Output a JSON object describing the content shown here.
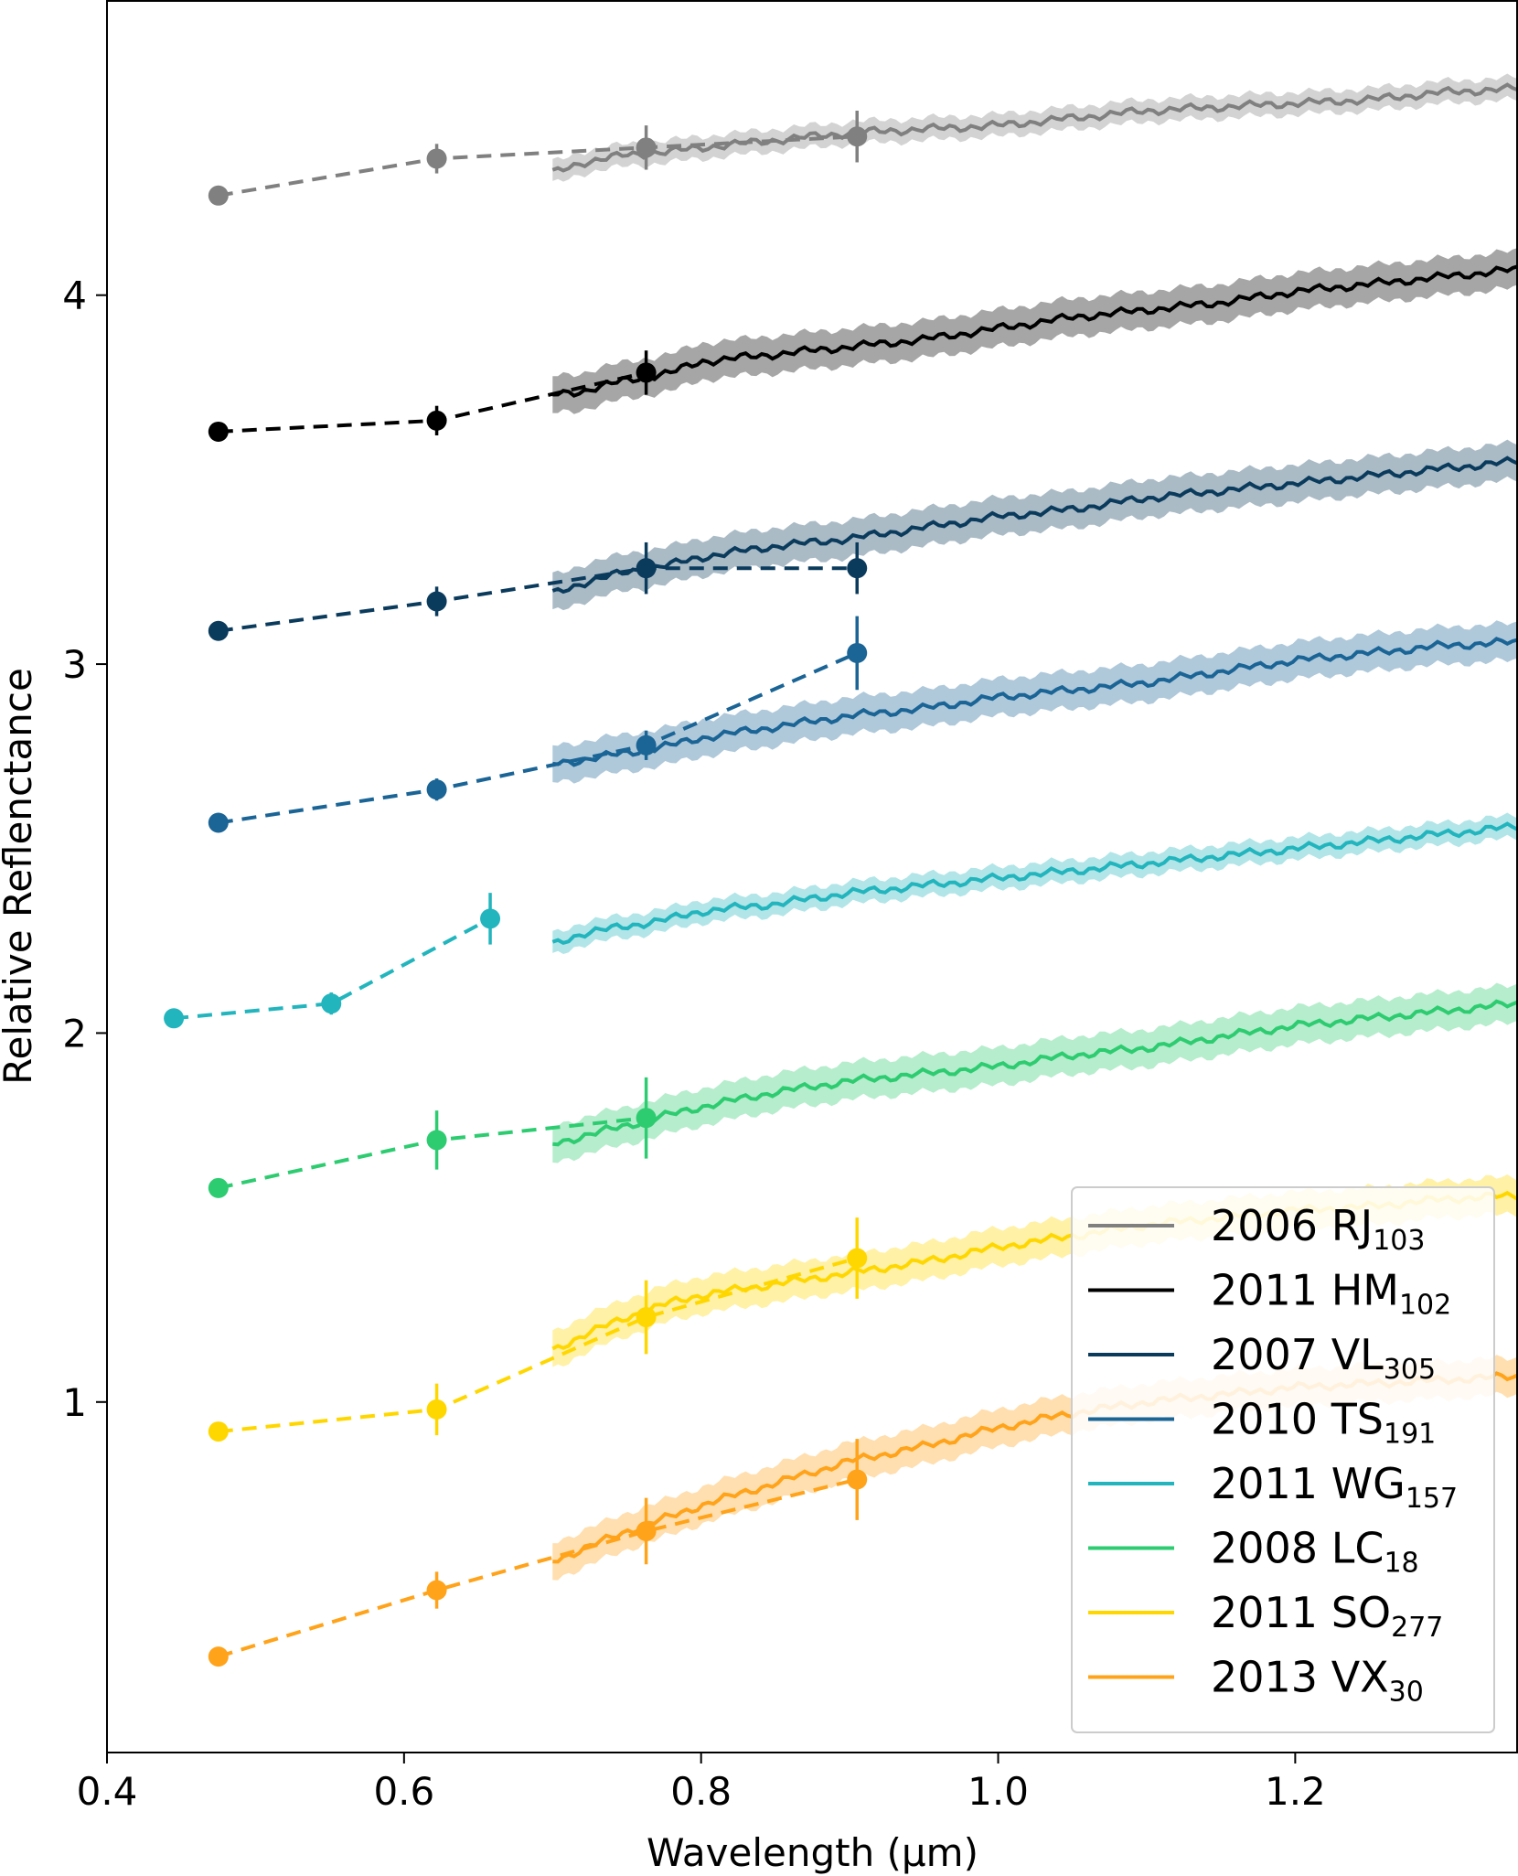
{
  "chart_data": {
    "type": "line",
    "xlabel": "Wavelength (μm)",
    "ylabel": "Relative Reflenctance",
    "xlim": [
      0.4,
      1.35
    ],
    "ylim": [
      0.05,
      4.8
    ],
    "xticks": [
      0.4,
      0.6,
      0.8,
      1.0,
      1.2
    ],
    "xtick_labels": [
      "0.4",
      "0.6",
      "0.8",
      "1.0",
      "1.2"
    ],
    "yticks": [
      1,
      2,
      3,
      4
    ],
    "ytick_labels": [
      "1",
      "2",
      "3",
      "4"
    ],
    "grid": false,
    "legend_position": "lower-right",
    "series": [
      {
        "name_main": "2006 RJ",
        "name_sub": "103",
        "color": "#808080",
        "photometry": [
          {
            "x": 0.475,
            "y": 4.27,
            "err": 0.0
          },
          {
            "x": 0.622,
            "y": 4.37,
            "err": 0.04
          },
          {
            "x": 0.763,
            "y": 4.4,
            "err": 0.06
          },
          {
            "x": 0.905,
            "y": 4.43,
            "err": 0.07
          }
        ],
        "spectrum": {
          "x": [
            0.7,
            0.72,
            0.75,
            0.78,
            0.8,
            0.85,
            0.9,
            0.95,
            1.0,
            1.05,
            1.1,
            1.15,
            1.2,
            1.25,
            1.3,
            1.35
          ],
          "y": [
            4.33,
            4.36,
            4.38,
            4.39,
            4.4,
            4.42,
            4.44,
            4.45,
            4.46,
            4.48,
            4.5,
            4.51,
            4.52,
            4.53,
            4.55,
            4.56
          ],
          "err": 0.03
        }
      },
      {
        "name_main": "2011 HM",
        "name_sub": "102",
        "color": "#000000",
        "photometry": [
          {
            "x": 0.475,
            "y": 3.63,
            "err": 0.0
          },
          {
            "x": 0.622,
            "y": 3.66,
            "err": 0.04
          },
          {
            "x": 0.763,
            "y": 3.79,
            "err": 0.06
          }
        ],
        "spectrum": {
          "x": [
            0.7,
            0.72,
            0.75,
            0.78,
            0.8,
            0.85,
            0.9,
            0.95,
            1.0,
            1.05,
            1.1,
            1.15,
            1.2,
            1.25,
            1.3,
            1.35
          ],
          "y": [
            3.73,
            3.74,
            3.77,
            3.79,
            3.82,
            3.84,
            3.86,
            3.88,
            3.91,
            3.94,
            3.96,
            3.98,
            4.01,
            4.03,
            4.05,
            4.07
          ],
          "err": 0.05
        }
      },
      {
        "name_main": "2007 VL",
        "name_sub": "305",
        "color": "#0b3b5c",
        "photometry": [
          {
            "x": 0.475,
            "y": 3.09,
            "err": 0.0
          },
          {
            "x": 0.622,
            "y": 3.17,
            "err": 0.04
          },
          {
            "x": 0.763,
            "y": 3.26,
            "err": 0.07
          },
          {
            "x": 0.905,
            "y": 3.26,
            "err": 0.07
          }
        ],
        "spectrum": {
          "x": [
            0.7,
            0.72,
            0.75,
            0.78,
            0.8,
            0.85,
            0.9,
            0.95,
            1.0,
            1.05,
            1.1,
            1.15,
            1.2,
            1.25,
            1.3,
            1.35
          ],
          "y": [
            3.19,
            3.22,
            3.25,
            3.27,
            3.29,
            3.32,
            3.34,
            3.37,
            3.4,
            3.42,
            3.45,
            3.47,
            3.49,
            3.51,
            3.53,
            3.55
          ],
          "err": 0.05
        }
      },
      {
        "name_main": "2010 TS",
        "name_sub": "191",
        "color": "#1a6496",
        "photometry": [
          {
            "x": 0.475,
            "y": 2.57,
            "err": 0.0
          },
          {
            "x": 0.622,
            "y": 2.66,
            "err": 0.03
          },
          {
            "x": 0.763,
            "y": 2.78,
            "err": 0.04
          },
          {
            "x": 0.905,
            "y": 3.03,
            "err": 0.1
          }
        ],
        "spectrum": {
          "x": [
            0.7,
            0.72,
            0.75,
            0.78,
            0.8,
            0.85,
            0.9,
            0.95,
            1.0,
            1.05,
            1.1,
            1.15,
            1.2,
            1.25,
            1.3,
            1.35
          ],
          "y": [
            2.73,
            2.74,
            2.76,
            2.78,
            2.8,
            2.83,
            2.86,
            2.88,
            2.91,
            2.93,
            2.95,
            2.98,
            3.01,
            3.03,
            3.05,
            3.06
          ],
          "err": 0.05
        }
      },
      {
        "name_main": "2011 WG",
        "name_sub": "157",
        "color": "#22b5bd",
        "photometry": [
          {
            "x": 0.445,
            "y": 2.04,
            "err": 0.0
          },
          {
            "x": 0.551,
            "y": 2.08,
            "err": 0.03
          },
          {
            "x": 0.658,
            "y": 2.31,
            "err": 0.07
          }
        ],
        "spectrum": {
          "x": [
            0.7,
            0.72,
            0.75,
            0.78,
            0.8,
            0.85,
            0.9,
            0.95,
            1.0,
            1.05,
            1.1,
            1.15,
            1.2,
            1.25,
            1.3,
            1.35
          ],
          "y": [
            2.24,
            2.27,
            2.29,
            2.31,
            2.33,
            2.35,
            2.38,
            2.4,
            2.42,
            2.44,
            2.46,
            2.48,
            2.5,
            2.52,
            2.54,
            2.56
          ],
          "err": 0.03
        }
      },
      {
        "name_main": "2008 LC",
        "name_sub": "18",
        "color": "#2ecc71",
        "photometry": [
          {
            "x": 0.475,
            "y": 1.58,
            "err": 0.0
          },
          {
            "x": 0.622,
            "y": 1.71,
            "err": 0.08
          },
          {
            "x": 0.763,
            "y": 1.77,
            "err": 0.11
          }
        ],
        "spectrum": {
          "x": [
            0.7,
            0.72,
            0.75,
            0.78,
            0.8,
            0.85,
            0.9,
            0.95,
            1.0,
            1.05,
            1.1,
            1.15,
            1.2,
            1.25,
            1.3,
            1.35
          ],
          "y": [
            1.7,
            1.72,
            1.75,
            1.78,
            1.8,
            1.84,
            1.87,
            1.89,
            1.91,
            1.94,
            1.96,
            1.99,
            2.02,
            2.04,
            2.06,
            2.08
          ],
          "err": 0.05
        }
      },
      {
        "name_main": "2011 SO",
        "name_sub": "277",
        "color": "#ffd700",
        "photometry": [
          {
            "x": 0.475,
            "y": 0.92,
            "err": 0.0
          },
          {
            "x": 0.622,
            "y": 0.98,
            "err": 0.07
          },
          {
            "x": 0.763,
            "y": 1.23,
            "err": 0.1
          },
          {
            "x": 0.905,
            "y": 1.39,
            "err": 0.11
          }
        ],
        "spectrum": {
          "x": [
            0.7,
            0.72,
            0.75,
            0.78,
            0.8,
            0.85,
            0.9,
            0.95,
            1.0,
            1.05,
            1.1,
            1.15,
            1.2,
            1.25,
            1.3,
            1.35
          ],
          "y": [
            1.14,
            1.18,
            1.23,
            1.27,
            1.29,
            1.32,
            1.35,
            1.38,
            1.42,
            1.45,
            1.48,
            1.5,
            1.52,
            1.53,
            1.55,
            1.56
          ],
          "err": 0.05
        }
      },
      {
        "name_main": "2013 VX",
        "name_sub": "30",
        "color": "#ffa31a",
        "photometry": [
          {
            "x": 0.475,
            "y": 0.31,
            "err": 0.0
          },
          {
            "x": 0.622,
            "y": 0.49,
            "err": 0.05
          },
          {
            "x": 0.763,
            "y": 0.65,
            "err": 0.09
          },
          {
            "x": 0.905,
            "y": 0.79,
            "err": 0.11
          }
        ],
        "spectrum": {
          "x": [
            0.7,
            0.72,
            0.75,
            0.78,
            0.8,
            0.85,
            0.9,
            0.95,
            1.0,
            1.05,
            1.1,
            1.15,
            1.2,
            1.25,
            1.3,
            1.35
          ],
          "y": [
            0.57,
            0.6,
            0.65,
            0.69,
            0.72,
            0.78,
            0.84,
            0.88,
            0.93,
            0.97,
            1.0,
            1.02,
            1.04,
            1.05,
            1.06,
            1.07
          ],
          "err": 0.05
        }
      }
    ]
  }
}
